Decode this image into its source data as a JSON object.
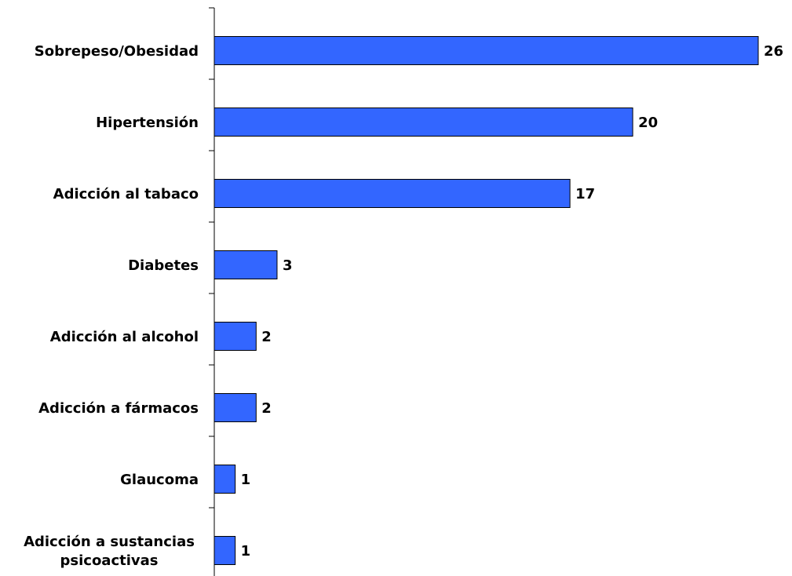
{
  "chart_data": {
    "type": "bar",
    "orientation": "horizontal",
    "categories": [
      [
        "Sobrepeso/Obesidad"
      ],
      [
        "Hipertensión"
      ],
      [
        "Adicción al tabaco"
      ],
      [
        "Diabetes"
      ],
      [
        "Adicción al alcohol"
      ],
      [
        "Adicción a fármacos"
      ],
      [
        "Glaucoma"
      ],
      [
        "Adicción a sustancias",
        "psicoactivas"
      ]
    ],
    "values": [
      26,
      20,
      17,
      3,
      2,
      2,
      1,
      1
    ],
    "title": "",
    "xlabel": "",
    "ylabel": "",
    "xlim": [
      0,
      26
    ],
    "grid": false,
    "legend": "none",
    "bar_color": "#3366FF",
    "bar_outline": "#000000"
  }
}
